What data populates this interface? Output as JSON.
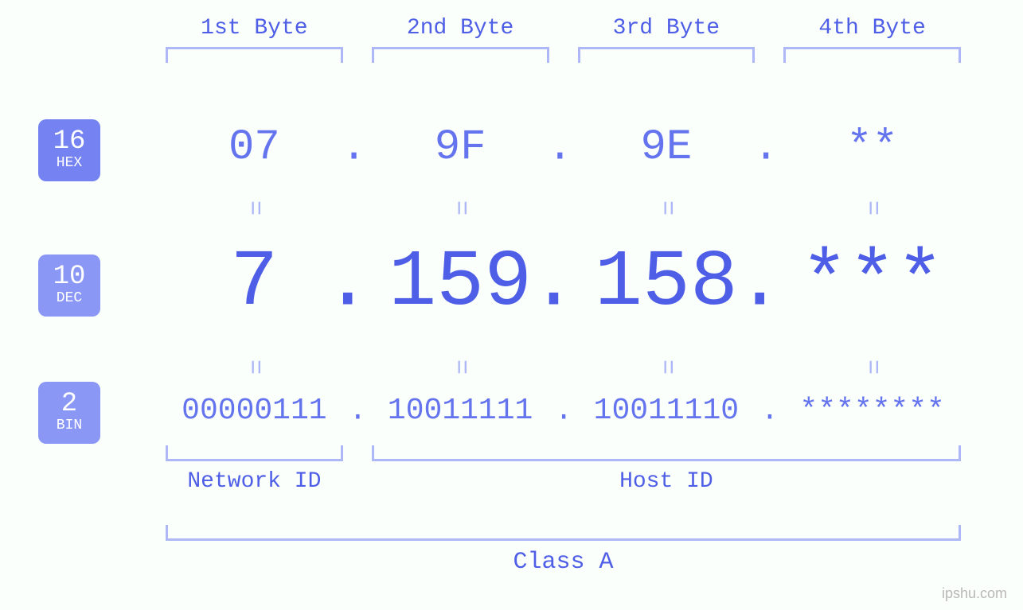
{
  "colors": {
    "background": "#fbfffb",
    "label_primary": "#4e5ee6",
    "value_mid": "#6473ee",
    "bracket": "#aeb8f6",
    "equals": "#aeb8f6",
    "badge1_bg": "#7483f1",
    "badge2_bg": "#8a97f5",
    "badge_text": "#ffffff",
    "watermark": "#b8b8b8"
  },
  "typography": {
    "font_family": "monospace",
    "top_label_fontsize": 28,
    "hex_fontsize": 54,
    "dec_fontsize": 100,
    "bin_fontsize": 38,
    "equals_fontsize": 32,
    "bottom_label_fontsize": 28,
    "class_label_fontsize": 30,
    "badge_num_fontsize": 34,
    "badge_txt_fontsize": 18
  },
  "top_labels": [
    "1st Byte",
    "2nd Byte",
    "3rd Byte",
    "4th Byte"
  ],
  "badges": {
    "hex": {
      "num": "16",
      "txt": "HEX"
    },
    "dec": {
      "num": "10",
      "txt": "DEC"
    },
    "bin": {
      "num": "2",
      "txt": "BIN"
    }
  },
  "bytes": {
    "hex": [
      "07",
      "9F",
      "9E",
      "**"
    ],
    "dec": [
      "7",
      "159",
      "158",
      "***"
    ],
    "bin": [
      "00000111",
      "10011111",
      "10011110",
      "********"
    ]
  },
  "separator": ".",
  "equals": "=",
  "structure": {
    "network_id": {
      "label": "Network ID",
      "span_bytes": 1
    },
    "host_id": {
      "label": "Host ID",
      "span_bytes": 3
    },
    "class_label": "Class A"
  },
  "watermark": "ipshu.com"
}
